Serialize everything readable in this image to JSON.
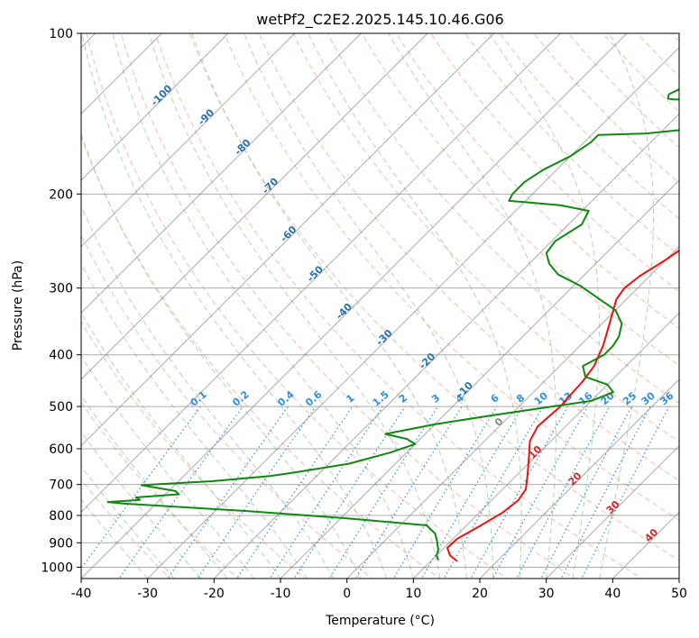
{
  "chart_data": {
    "type": "line",
    "title": "wetPf2_C2E2.2025.145.10.46.G06",
    "xlabel": "Temperature (°C)",
    "ylabel": "Pressure (hPa)",
    "xlim": [
      -40,
      50
    ],
    "ylim": [
      1050,
      100
    ],
    "y_scale": "log",
    "x_ticks": [
      -40,
      -30,
      -20,
      -10,
      0,
      10,
      20,
      30,
      40,
      50
    ],
    "y_ticks": [
      100,
      200,
      300,
      400,
      500,
      600,
      700,
      800,
      900,
      1000
    ],
    "skew": 1,
    "grid": true,
    "colors": {
      "temperature": "#ee1111",
      "dewpoint": "#118811",
      "isotherm": "#888888",
      "dry_adiabat": "#f4a58a",
      "moist_adiabat": "#9fcc9f",
      "mixing_ratio": "#2f8fdf",
      "isotherm_label_neg": "#2a6fb0",
      "isotherm_label_pos": "#d62728"
    },
    "series": [
      {
        "kind": "temperature",
        "points": [
          [
            14,
            975
          ],
          [
            12,
            950
          ],
          [
            10.5,
            920
          ],
          [
            10.6,
            885
          ],
          [
            12,
            840
          ],
          [
            13.5,
            790
          ],
          [
            14,
            750
          ],
          [
            13.5,
            715
          ],
          [
            11.5,
            670
          ],
          [
            9,
            620
          ],
          [
            6.8,
            580
          ],
          [
            5.8,
            545
          ],
          [
            6.2,
            500
          ],
          [
            6,
            480
          ],
          [
            5.8,
            450
          ],
          [
            5.2,
            420
          ],
          [
            3.5,
            385
          ],
          [
            1,
            348
          ],
          [
            -1.5,
            315
          ],
          [
            -2,
            300
          ],
          [
            -1.5,
            285
          ],
          [
            0,
            265
          ],
          [
            1.5,
            240
          ],
          [
            3,
            220
          ],
          [
            6,
            203
          ],
          [
            10,
            190
          ],
          [
            13.5,
            175
          ],
          [
            16.5,
            160
          ],
          [
            19.5,
            145
          ],
          [
            23.5,
            132
          ],
          [
            28,
            123
          ],
          [
            31,
            116
          ],
          [
            31.5,
            110
          ],
          [
            31,
            105
          ],
          [
            30.5,
            100
          ]
        ]
      },
      {
        "kind": "dewpoint",
        "points": [
          [
            11,
            970
          ],
          [
            10,
            950
          ],
          [
            9.5,
            930
          ],
          [
            8,
            895
          ],
          [
            6.5,
            865
          ],
          [
            4,
            835
          ],
          [
            -9,
            810
          ],
          [
            -25,
            785
          ],
          [
            -45,
            760
          ],
          [
            -47.5,
            755
          ],
          [
            -43,
            748
          ],
          [
            -44,
            740
          ],
          [
            -38,
            730
          ],
          [
            -39,
            720
          ],
          [
            -45,
            702
          ],
          [
            -35,
            690
          ],
          [
            -27,
            675
          ],
          [
            -24,
            665
          ],
          [
            -17,
            640
          ],
          [
            -12.5,
            610
          ],
          [
            -10,
            588
          ],
          [
            -12,
            575
          ],
          [
            -16,
            563
          ],
          [
            -10,
            540
          ],
          [
            -3,
            520
          ],
          [
            5,
            500
          ],
          [
            10,
            488
          ],
          [
            12,
            470
          ],
          [
            10,
            455
          ],
          [
            5.5,
            440
          ],
          [
            3.5,
            420
          ],
          [
            5,
            400
          ],
          [
            5,
            385
          ],
          [
            4.5,
            370
          ],
          [
            3,
            350
          ],
          [
            0,
            330
          ],
          [
            -4,
            315
          ],
          [
            -9,
            297
          ],
          [
            -14,
            283
          ],
          [
            -17,
            270
          ],
          [
            -19,
            258
          ],
          [
            -19.5,
            245
          ],
          [
            -18,
            228
          ],
          [
            -19,
            215
          ],
          [
            -24,
            210
          ],
          [
            -30,
            207
          ],
          [
            -32.5,
            206
          ],
          [
            -33,
            200
          ],
          [
            -33,
            190
          ],
          [
            -32,
            180
          ],
          [
            -30,
            170
          ],
          [
            -29,
            160
          ],
          [
            -29,
            155
          ],
          [
            -22,
            154
          ],
          [
            -16,
            151
          ],
          [
            -12,
            146
          ],
          [
            -10.5,
            141
          ],
          [
            -13,
            136
          ],
          [
            -19,
            133
          ],
          [
            -23,
            133
          ],
          [
            -24,
            132.5
          ],
          [
            -24.5,
            130
          ],
          [
            -23,
            125
          ],
          [
            -21,
            120
          ],
          [
            -19,
            115
          ],
          [
            -15,
            110
          ],
          [
            -11,
            106
          ],
          [
            -8.5,
            103
          ],
          [
            -7.5,
            100
          ]
        ]
      }
    ],
    "isotherm_labels": [
      "-100",
      "-90",
      "-80",
      "-70",
      "-60",
      "-50",
      "-40",
      "-30",
      "-20",
      "-10",
      "0",
      "10",
      "20",
      "30",
      "40"
    ],
    "mixing_ratio_labels": [
      "0.1",
      "0.2",
      "0.4",
      "0.6",
      "1",
      "1.5",
      "2",
      "3",
      "4",
      "6",
      "8",
      "10",
      "13",
      "16",
      "20",
      "25",
      "30",
      "36"
    ]
  }
}
